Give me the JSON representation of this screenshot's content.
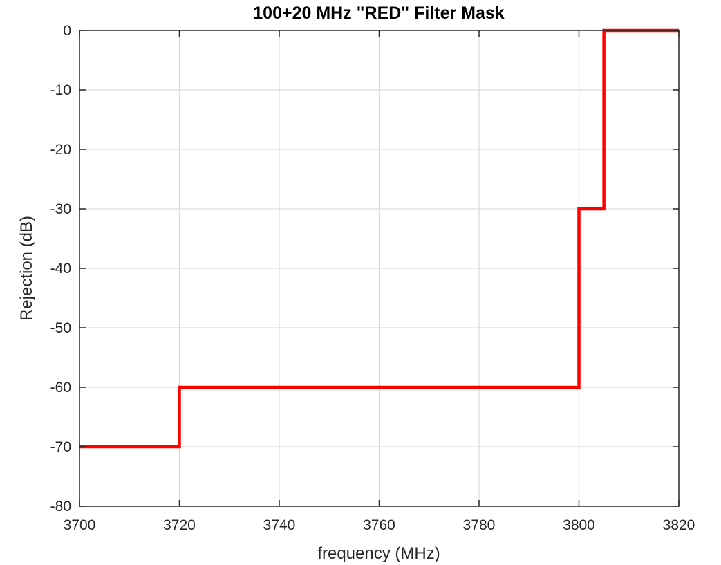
{
  "chart_data": {
    "type": "line",
    "title": "100+20 MHz \"RED\" Filter Mask",
    "xlabel": "frequency (MHz)",
    "ylabel": "Rejection (dB)",
    "xlim": [
      3700,
      3820
    ],
    "ylim": [
      -80,
      0
    ],
    "x_ticks": [
      "3700",
      "3720",
      "3740",
      "3760",
      "3780",
      "3800",
      "3820"
    ],
    "y_ticks": [
      "0",
      "-10",
      "-20",
      "-30",
      "-40",
      "-50",
      "-60",
      "-70",
      "-80"
    ],
    "grid": true,
    "legend": "none",
    "series": [
      {
        "color": "#ff0000",
        "x": [
          3700,
          3720,
          3720,
          3800,
          3800,
          3805,
          3805,
          3820
        ],
        "y": [
          -70,
          -70,
          -60,
          -60,
          -30,
          -30,
          0,
          0
        ]
      }
    ]
  }
}
